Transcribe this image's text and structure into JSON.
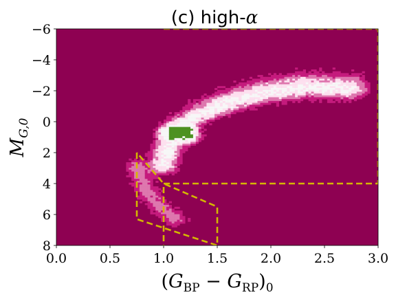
{
  "chart_data": {
    "type": "heatmap",
    "title_prefix": "(c) high-",
    "title_symbol": "α",
    "xlabel": {
      "open": "(",
      "main1": "G",
      "sub1": "BP",
      "minus": " − ",
      "main2": "G",
      "sub2": "RP",
      "close": ")",
      "sub3": "0"
    },
    "ylabel": {
      "main": "M",
      "sub": "G,0"
    },
    "xlim": [
      0.0,
      3.0
    ],
    "ylim": [
      8,
      -6
    ],
    "y_inverted": true,
    "xticks": [
      0.0,
      0.5,
      1.0,
      1.5,
      2.0,
      2.5,
      3.0
    ],
    "xtick_labels": [
      "0.0",
      "0.5",
      "1.0",
      "1.5",
      "2.0",
      "2.5",
      "3.0"
    ],
    "yticks": [
      -6,
      -4,
      -2,
      0,
      2,
      4,
      6,
      8
    ],
    "ytick_labels": [
      "−6",
      "−4",
      "−2",
      "0",
      "2",
      "4",
      "6",
      "8"
    ],
    "grid": false,
    "colors": {
      "background": "#8e0152",
      "low_density": "#c51b7d",
      "mid_density": "#de77ae",
      "high_density": "#fde0ef",
      "peak_density": "#f7f7f7",
      "overdense": "#4d9221",
      "selection_box": "#d4b700"
    },
    "density_features": [
      {
        "name": "red giant branch",
        "points": [
          [
            0.98,
            2.8
          ],
          [
            1.05,
            1.2
          ],
          [
            1.15,
            0.2
          ],
          [
            1.35,
            -0.6
          ],
          [
            1.6,
            -1.3
          ],
          [
            1.9,
            -1.9
          ],
          [
            2.3,
            -2.3
          ],
          [
            2.7,
            -2.2
          ]
        ],
        "strength": 1.0
      },
      {
        "name": "red clump",
        "points": [
          [
            1.05,
            0.6
          ],
          [
            1.18,
            0.6
          ],
          [
            1.22,
            0.9
          ]
        ],
        "strength": 1.4
      },
      {
        "name": "main sequence turnoff",
        "points": [
          [
            0.72,
            2.8
          ],
          [
            0.78,
            3.7
          ],
          [
            0.85,
            4.6
          ],
          [
            0.95,
            5.4
          ],
          [
            1.1,
            6.3
          ]
        ],
        "strength": 0.45
      }
    ],
    "selection_regions": [
      {
        "name": "giant selection box",
        "vertices": [
          [
            1.0,
            -6.0
          ],
          [
            3.0,
            -6.0
          ],
          [
            3.0,
            4.0
          ],
          [
            1.0,
            4.0
          ],
          [
            1.0,
            8.0
          ]
        ]
      },
      {
        "name": "dwarf selection parallelogram",
        "vertices": [
          [
            0.75,
            2.0
          ],
          [
            0.75,
            6.3
          ],
          [
            1.5,
            8.0
          ],
          [
            1.5,
            5.5
          ],
          [
            1.0,
            4.0
          ],
          [
            0.75,
            2.0
          ]
        ]
      }
    ]
  }
}
